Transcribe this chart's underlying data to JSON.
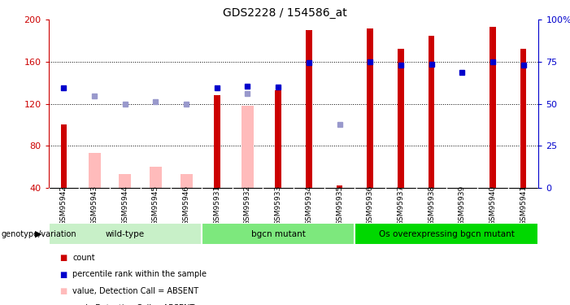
{
  "title": "GDS2228 / 154586_at",
  "samples": [
    "GSM95942",
    "GSM95943",
    "GSM95944",
    "GSM95945",
    "GSM95946",
    "GSM95931",
    "GSM95932",
    "GSM95933",
    "GSM95934",
    "GSM95935",
    "GSM95936",
    "GSM95937",
    "GSM95938",
    "GSM95939",
    "GSM95940",
    "GSM95941"
  ],
  "red_bars": {
    "GSM95942": 100,
    "GSM95931": 128,
    "GSM95933": 133,
    "GSM95934": 190,
    "GSM95935": 42,
    "GSM95936": 192,
    "GSM95937": 172,
    "GSM95938": 185,
    "GSM95940": 193,
    "GSM95941": 172
  },
  "pink_bars": {
    "GSM95943": 73,
    "GSM95944": 53,
    "GSM95945": 60,
    "GSM95946": 53,
    "GSM95932": 118
  },
  "blue_squares": {
    "GSM95942": 135,
    "GSM95931": 135,
    "GSM95932": 137,
    "GSM95933": 136,
    "GSM95934": 159,
    "GSM95936": 160,
    "GSM95937": 157,
    "GSM95938": 158,
    "GSM95939": 150,
    "GSM95940": 160,
    "GSM95941": 157
  },
  "lightblue_squares": {
    "GSM95943": 127,
    "GSM95944": 120,
    "GSM95945": 122,
    "GSM95946": 120,
    "GSM95932": 130,
    "GSM95935": 100
  },
  "groups": [
    {
      "label": "wild-type",
      "samples": [
        "GSM95942",
        "GSM95943",
        "GSM95944",
        "GSM95945",
        "GSM95946"
      ],
      "color": "#c8f0c8"
    },
    {
      "label": "bgcn mutant",
      "samples": [
        "GSM95931",
        "GSM95932",
        "GSM95933",
        "GSM95934",
        "GSM95935"
      ],
      "color": "#7de87d"
    },
    {
      "label": "Os overexpressing bgcn mutant",
      "samples": [
        "GSM95936",
        "GSM95937",
        "GSM95938",
        "GSM95939",
        "GSM95940",
        "GSM95941"
      ],
      "color": "#00d800"
    }
  ],
  "ylim_left": [
    40,
    200
  ],
  "ylim_right": [
    0,
    100
  ],
  "red_color": "#cc0000",
  "pink_color": "#ffbbbb",
  "blue_color": "#0000cc",
  "lightblue_color": "#9999cc",
  "bar_width": 0.4,
  "xbg_color": "#cccccc",
  "legend_items": [
    {
      "color": "#cc0000",
      "label": "count"
    },
    {
      "color": "#0000cc",
      "label": "percentile rank within the sample"
    },
    {
      "color": "#ffbbbb",
      "label": "value, Detection Call = ABSENT"
    },
    {
      "color": "#9999cc",
      "label": "rank, Detection Call = ABSENT"
    }
  ]
}
